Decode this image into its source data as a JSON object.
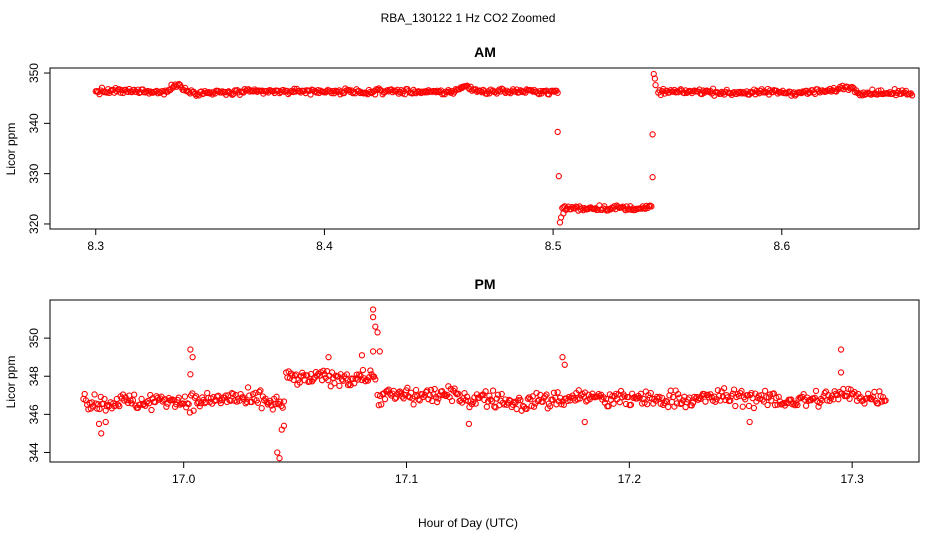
{
  "title": "RBA_130122  1 Hz CO2 Zoomed",
  "xlabel": "Hour of Day (UTC)",
  "point_color": "#ff0000",
  "chart_data": [
    {
      "type": "scatter",
      "title": "AM",
      "ylabel": "Licor ppm",
      "xlim": [
        8.28,
        8.66
      ],
      "ylim": [
        319,
        351
      ],
      "xticks": [
        8.3,
        8.4,
        8.5,
        8.6
      ],
      "xtick_labels": [
        "8.3",
        "8.4",
        "8.5",
        "8.6"
      ],
      "yticks": [
        320,
        330,
        340,
        350
      ],
      "ytick_labels": [
        "320",
        "330",
        "340",
        "350"
      ],
      "segments": [
        {
          "x_start": 8.3,
          "x_end": 8.502,
          "level": 346.3,
          "noise": 0.55
        },
        {
          "x_start": 8.504,
          "x_end": 8.543,
          "level": 323.2,
          "noise": 0.5
        },
        {
          "x_start": 8.546,
          "x_end": 8.657,
          "level": 346.2,
          "noise": 0.55
        }
      ],
      "bumps": [
        {
          "x": 8.336,
          "y": 347.8
        },
        {
          "x": 8.462,
          "y": 347.6
        },
        {
          "x": 8.628,
          "y": 347.3
        }
      ],
      "transitions": [
        {
          "x": 8.502,
          "y": 338.3
        },
        {
          "x": 8.5025,
          "y": 329.5
        },
        {
          "x": 8.503,
          "y": 320.3
        },
        {
          "x": 8.5035,
          "y": 321.3
        },
        {
          "x": 8.5045,
          "y": 322.1
        },
        {
          "x": 8.5435,
          "y": 329.3
        },
        {
          "x": 8.5435,
          "y": 337.8
        },
        {
          "x": 8.544,
          "y": 349.8
        },
        {
          "x": 8.5445,
          "y": 348.9
        },
        {
          "x": 8.5448,
          "y": 347.6
        }
      ]
    },
    {
      "type": "scatter",
      "title": "PM",
      "ylabel": "Licor ppm",
      "xlim": [
        16.94,
        17.33
      ],
      "ylim": [
        343.5,
        352.0
      ],
      "xticks": [
        17.0,
        17.1,
        17.2,
        17.3
      ],
      "xtick_labels": [
        "17.0",
        "17.1",
        "17.2",
        "17.3"
      ],
      "yticks": [
        344,
        346,
        348,
        350
      ],
      "ytick_labels": [
        "344",
        "346",
        "348",
        "350"
      ],
      "segments": [
        {
          "x_start": 16.955,
          "x_end": 17.045,
          "level": 346.7,
          "noise": 0.45
        },
        {
          "x_start": 17.046,
          "x_end": 17.086,
          "level": 347.9,
          "noise": 0.4
        },
        {
          "x_start": 17.087,
          "x_end": 17.315,
          "level": 346.9,
          "noise": 0.45
        }
      ],
      "outliers": [
        {
          "x": 16.962,
          "y": 345.5
        },
        {
          "x": 16.963,
          "y": 345.0
        },
        {
          "x": 16.965,
          "y": 345.6
        },
        {
          "x": 17.003,
          "y": 349.4
        },
        {
          "x": 17.004,
          "y": 349.0
        },
        {
          "x": 17.003,
          "y": 348.1
        },
        {
          "x": 17.042,
          "y": 344.0
        },
        {
          "x": 17.043,
          "y": 343.7
        },
        {
          "x": 17.044,
          "y": 345.2
        },
        {
          "x": 17.045,
          "y": 345.4
        },
        {
          "x": 17.085,
          "y": 351.5
        },
        {
          "x": 17.085,
          "y": 351.1
        },
        {
          "x": 17.086,
          "y": 350.6
        },
        {
          "x": 17.087,
          "y": 350.3
        },
        {
          "x": 17.085,
          "y": 349.3
        },
        {
          "x": 17.088,
          "y": 349.3
        },
        {
          "x": 17.08,
          "y": 349.1
        },
        {
          "x": 17.065,
          "y": 349.0
        },
        {
          "x": 17.17,
          "y": 349.0
        },
        {
          "x": 17.171,
          "y": 348.6
        },
        {
          "x": 17.295,
          "y": 349.4
        },
        {
          "x": 17.295,
          "y": 348.2
        },
        {
          "x": 17.128,
          "y": 345.5
        },
        {
          "x": 17.18,
          "y": 345.6
        },
        {
          "x": 17.254,
          "y": 345.6
        }
      ]
    }
  ]
}
